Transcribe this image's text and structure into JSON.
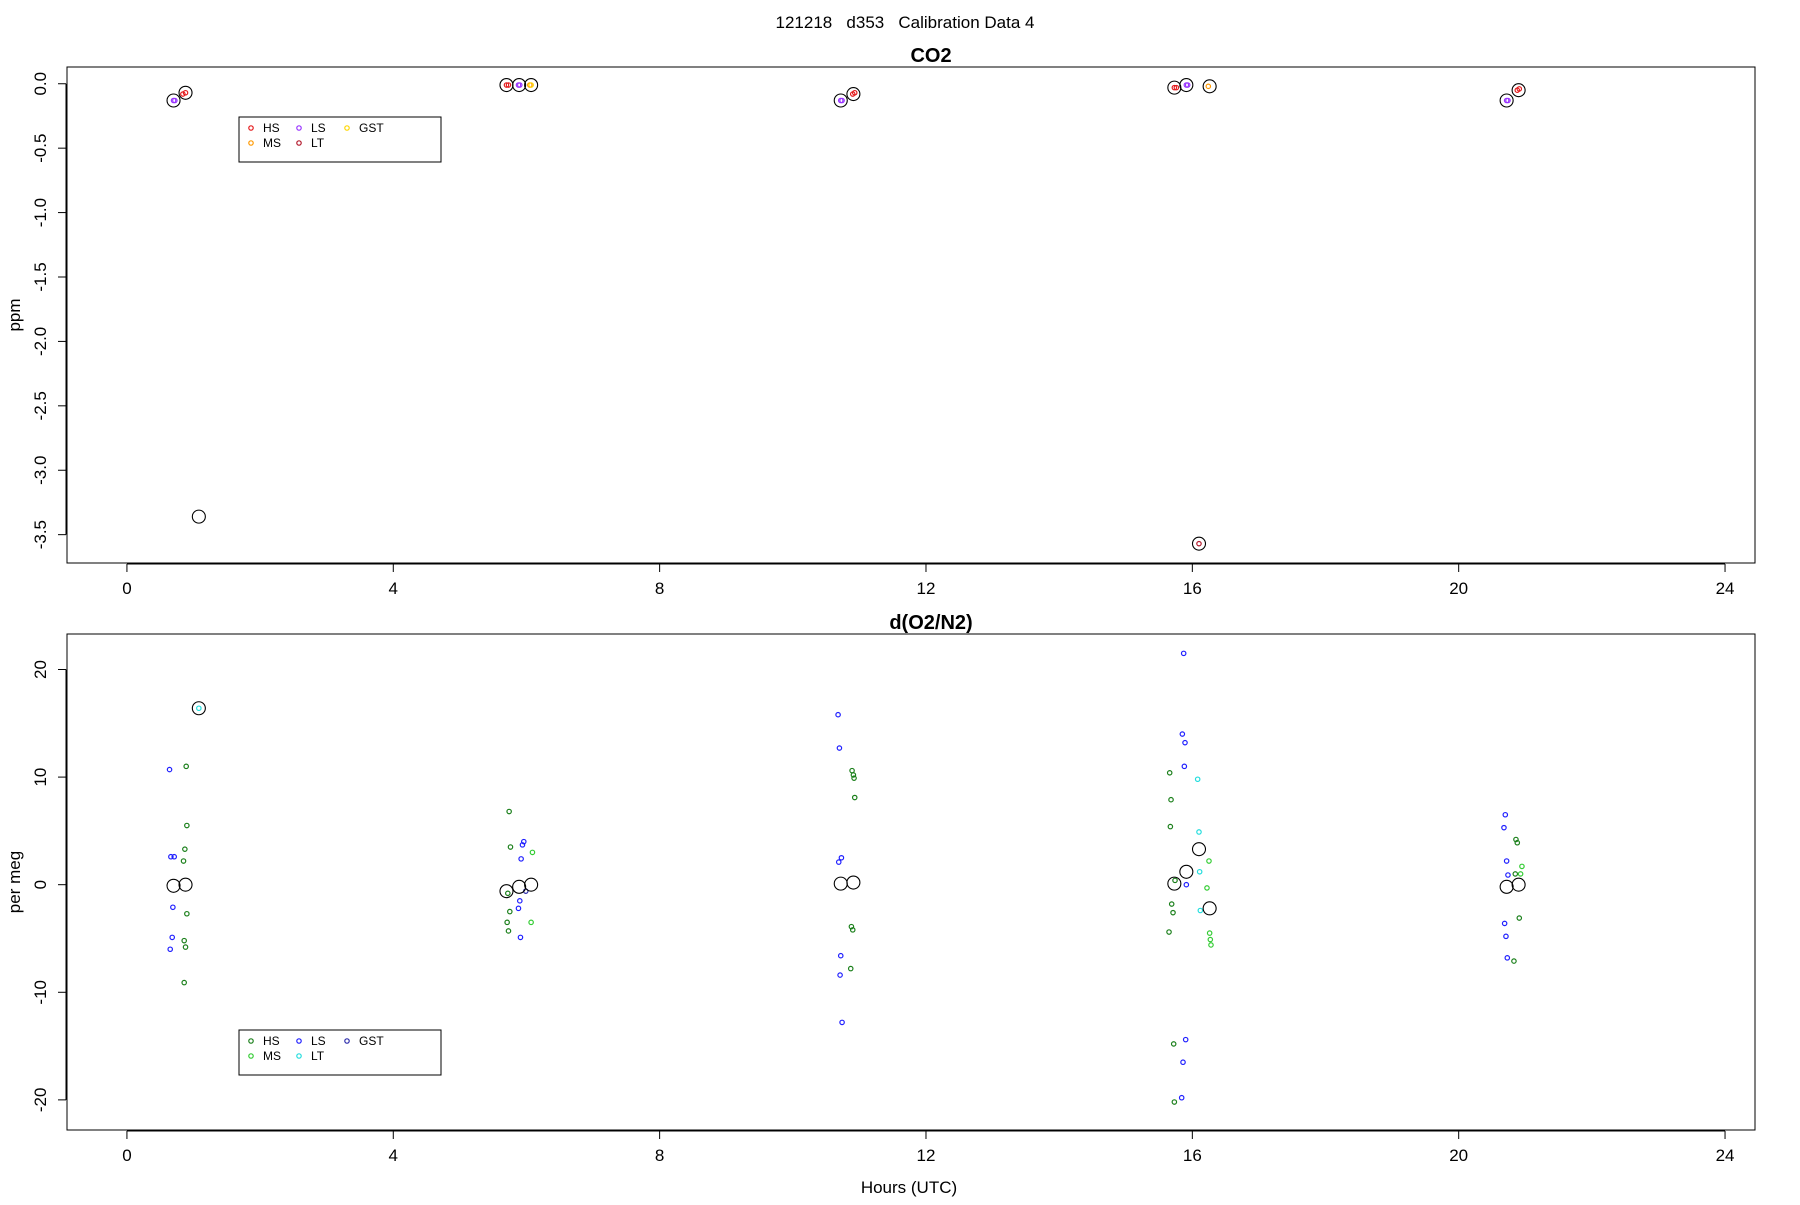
{
  "figure": {
    "title": "121218   d353   Calibration Data 4"
  },
  "chart_data": [
    {
      "type": "scatter",
      "title": "CO2",
      "xlabel": "",
      "ylabel": "ppm",
      "xlim": [
        -0.9,
        24.45
      ],
      "ylim": [
        -3.72,
        0.13
      ],
      "xticks": [
        0,
        4,
        8,
        12,
        16,
        20,
        24
      ],
      "yticks": [
        0.0,
        -0.5,
        -1.0,
        -1.5,
        -2.0,
        -2.5,
        -3.0,
        -3.5
      ],
      "ytick_labels": [
        "0.0",
        "-0.5",
        "-1.0",
        "-1.5",
        "-2.0",
        "-2.5",
        "-3.0",
        "-3.5"
      ],
      "legend": {
        "placement": "top-left",
        "entries": [
          {
            "label": "HS",
            "color": "#e41a1c"
          },
          {
            "label": "MS",
            "color": "#ff9900"
          },
          {
            "label": "LS",
            "color": "#9933ff"
          },
          {
            "label": "LT",
            "color": "#b2182b"
          },
          {
            "label": "GST",
            "color": "#ffd700"
          }
        ]
      },
      "series": [
        {
          "name": "HS",
          "color": "#e41a1c",
          "x": [
            0.88,
            0.84,
            5.7,
            5.73,
            10.93,
            10.9,
            15.73,
            15.76,
            20.88,
            20.91
          ],
          "y": [
            -0.07,
            -0.08,
            -0.01,
            -0.01,
            -0.07,
            -0.08,
            -0.03,
            -0.03,
            -0.05,
            -0.04
          ]
        },
        {
          "name": "MS",
          "color": "#ff9900",
          "x": [
            6.05,
            16.24
          ],
          "y": [
            -0.01,
            -0.02
          ]
        },
        {
          "name": "LS",
          "color": "#9933ff",
          "x": [
            0.7,
            0.72,
            5.88,
            5.9,
            10.72,
            10.74,
            15.91,
            15.93,
            20.72,
            20.74
          ],
          "y": [
            -0.13,
            -0.13,
            -0.01,
            -0.01,
            -0.13,
            -0.13,
            -0.01,
            -0.01,
            -0.13,
            -0.13
          ]
        },
        {
          "name": "LT",
          "color": "#b2182b",
          "x": [
            16.1
          ],
          "y": [
            -3.57
          ]
        },
        {
          "name": "GST",
          "color": "#ffd700",
          "x": [
            6.07
          ],
          "y": [
            -0.01
          ]
        },
        {
          "name": "mean",
          "color": "#000000",
          "marker": "large-circle",
          "x": [
            0.7,
            0.88,
            1.08,
            5.7,
            5.89,
            6.07,
            10.72,
            10.91,
            15.73,
            15.91,
            16.1,
            16.26,
            20.72,
            20.9
          ],
          "y": [
            -0.13,
            -0.07,
            -3.36,
            -0.01,
            -0.01,
            -0.01,
            -0.13,
            -0.08,
            -0.03,
            -0.01,
            -3.57,
            -0.02,
            -0.13,
            -0.05
          ]
        }
      ]
    },
    {
      "type": "scatter",
      "title": "d(O2/N2)",
      "xlabel": "Hours (UTC)",
      "ylabel": "per meg",
      "xlim": [
        -0.9,
        24.45
      ],
      "ylim": [
        -22.8,
        23.3
      ],
      "xticks": [
        0,
        4,
        8,
        12,
        16,
        20,
        24
      ],
      "yticks": [
        20,
        10,
        0,
        -10,
        -20
      ],
      "ytick_labels": [
        "20",
        "10",
        "0",
        "-10",
        "-20"
      ],
      "legend": {
        "placement": "bottom-left",
        "entries": [
          {
            "label": "HS",
            "color": "#1a7f1a"
          },
          {
            "label": "MS",
            "color": "#33cc33"
          },
          {
            "label": "LS",
            "color": "#1f1fff"
          },
          {
            "label": "LT",
            "color": "#22dddd"
          },
          {
            "label": "GST",
            "color": "#2a2aaa"
          }
        ]
      },
      "series": [
        {
          "name": "HS",
          "color": "#1a7f1a",
          "x": [
            0.89,
            0.9,
            0.87,
            0.85,
            0.9,
            0.86,
            0.88,
            0.86,
            5.74,
            5.76,
            5.72,
            5.75,
            5.71,
            5.73,
            10.89,
            10.91,
            10.92,
            10.93,
            10.88,
            10.9,
            10.87,
            15.66,
            15.68,
            15.67,
            15.69,
            15.72,
            15.73,
            15.65,
            15.71,
            15.74,
            20.86,
            20.88,
            20.91,
            20.85,
            20.83
          ],
          "y": [
            11.0,
            5.5,
            3.3,
            2.2,
            -2.7,
            -5.2,
            -5.8,
            -9.1,
            6.8,
            3.5,
            -0.8,
            -2.5,
            -3.5,
            -4.3,
            10.6,
            10.2,
            9.9,
            8.1,
            -3.9,
            -4.2,
            -7.8,
            10.4,
            7.9,
            5.4,
            -1.8,
            -14.8,
            -20.2,
            -4.4,
            -2.6,
            0.4,
            4.2,
            3.9,
            -3.1,
            1.0,
            -7.1
          ]
        },
        {
          "name": "MS",
          "color": "#33cc33",
          "x": [
            6.09,
            6.07,
            16.25,
            16.22,
            16.27,
            16.28,
            16.26,
            20.95,
            20.93
          ],
          "y": [
            3.0,
            -3.5,
            2.2,
            -0.3,
            -5.1,
            -5.6,
            -4.5,
            1.7,
            1.0
          ]
        },
        {
          "name": "LS",
          "color": "#1f1fff",
          "x": [
            0.64,
            0.66,
            0.71,
            0.69,
            0.68,
            0.65,
            5.96,
            5.94,
            5.92,
            5.9,
            5.88,
            5.91,
            10.68,
            10.7,
            10.73,
            10.69,
            10.72,
            10.71,
            10.74,
            15.87,
            15.85,
            15.89,
            15.88,
            15.9,
            15.86,
            15.84,
            15.91,
            20.7,
            20.68,
            20.72,
            20.74,
            20.69,
            20.71,
            20.73
          ],
          "y": [
            10.7,
            2.6,
            2.6,
            -2.1,
            -4.9,
            -6.0,
            4.0,
            3.7,
            2.4,
            -1.5,
            -2.2,
            -4.9,
            15.8,
            12.7,
            2.5,
            2.1,
            -6.6,
            -8.4,
            -12.8,
            21.5,
            14.0,
            13.2,
            11.0,
            -14.4,
            -16.5,
            -19.8,
            0.0,
            6.5,
            5.3,
            2.2,
            0.9,
            -3.6,
            -4.8,
            -6.8
          ]
        },
        {
          "name": "LT",
          "color": "#22dddd",
          "x": [
            1.08,
            16.08,
            16.1,
            16.12,
            16.11
          ],
          "y": [
            16.4,
            9.8,
            4.9,
            -2.4,
            1.2
          ]
        },
        {
          "name": "GST",
          "color": "#2a2aaa",
          "x": [
            5.99
          ],
          "y": [
            -0.6
          ]
        },
        {
          "name": "mean",
          "color": "#000000",
          "marker": "large-circle",
          "x": [
            0.7,
            0.88,
            1.08,
            5.7,
            5.89,
            6.07,
            10.72,
            10.91,
            15.73,
            15.91,
            16.1,
            16.26,
            20.72,
            20.9
          ],
          "y": [
            -0.1,
            0.0,
            16.4,
            -0.6,
            -0.2,
            0.0,
            0.1,
            0.2,
            0.1,
            1.2,
            3.3,
            -2.2,
            -0.2,
            0.0
          ]
        }
      ]
    }
  ]
}
